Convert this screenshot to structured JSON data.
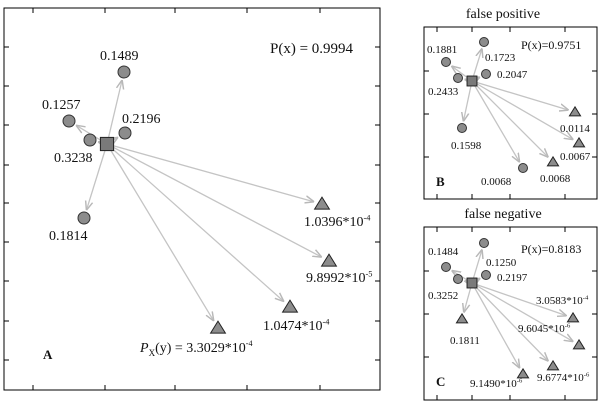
{
  "colors": {
    "node_fill": "#8c8c8c",
    "arrow": "#c4c4c4",
    "frame": "#000000"
  },
  "panels": [
    {
      "id": "A",
      "title": "",
      "letter": "A",
      "px_label": "P(x) = 0.9994",
      "py_label": {
        "text": "P",
        "sub": "X",
        "rest": "(y) = 3.3029*10",
        "exp": "-4"
      },
      "nodes": [
        {
          "shape": "circle",
          "value": "0.1489"
        },
        {
          "shape": "circle",
          "value": "0.1257"
        },
        {
          "shape": "circle",
          "value": "0.3238"
        },
        {
          "shape": "circle",
          "value": "0.2196"
        },
        {
          "shape": "circle",
          "value": "0.1814"
        },
        {
          "shape": "triangle",
          "value": "1.0396*10",
          "exp": "-4"
        },
        {
          "shape": "triangle",
          "value": "9.8992*10",
          "exp": "-5"
        },
        {
          "shape": "triangle",
          "value": "1.0474*10",
          "exp": "-4"
        },
        {
          "shape": "triangle",
          "value": "",
          "exp": ""
        }
      ]
    },
    {
      "id": "B",
      "title": "false positive",
      "letter": "B",
      "px_label": "P(x)=0.9751",
      "nodes": [
        {
          "shape": "circle",
          "value": "0.1723"
        },
        {
          "shape": "circle",
          "value": "0.1881"
        },
        {
          "shape": "circle",
          "value": "0.2433"
        },
        {
          "shape": "circle",
          "value": "0.2047"
        },
        {
          "shape": "circle",
          "value": "0.1598"
        },
        {
          "shape": "circle",
          "value": "0.0068"
        },
        {
          "shape": "triangle",
          "value": "0.0114"
        },
        {
          "shape": "triangle",
          "value": "0.0067"
        },
        {
          "shape": "triangle",
          "value": "0.0068"
        }
      ]
    },
    {
      "id": "C",
      "title": "false negative",
      "letter": "C",
      "px_label": "P(x)=0.8183",
      "nodes": [
        {
          "shape": "circle",
          "value": "0.1250"
        },
        {
          "shape": "circle",
          "value": "0.1484"
        },
        {
          "shape": "circle",
          "value": "0.3252"
        },
        {
          "shape": "circle",
          "value": "0.2197"
        },
        {
          "shape": "triangle",
          "value": "0.1811"
        },
        {
          "shape": "triangle",
          "value": "3.0583*10",
          "exp": "-4"
        },
        {
          "shape": "triangle",
          "value": "9.6045*10",
          "exp": "-6"
        },
        {
          "shape": "triangle",
          "value": "9.6774*10",
          "exp": "-6"
        },
        {
          "shape": "triangle",
          "value": "9.1490*10",
          "exp": "-6"
        }
      ]
    }
  ]
}
